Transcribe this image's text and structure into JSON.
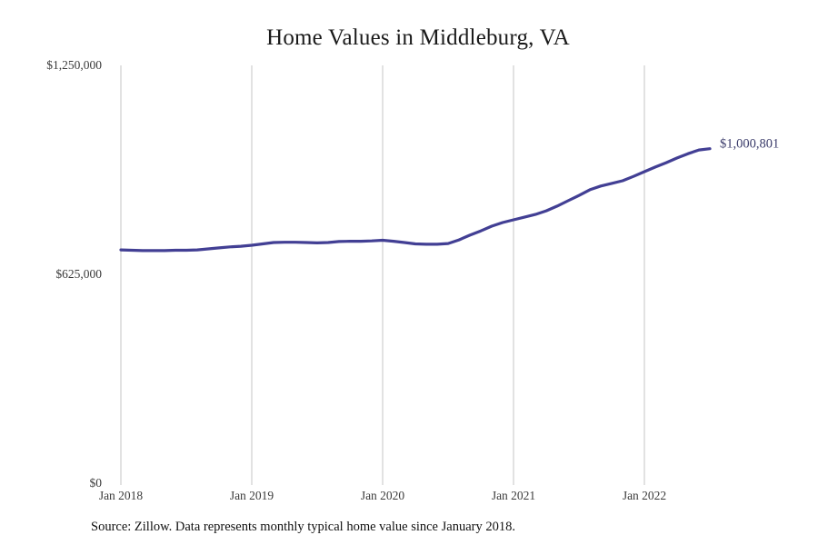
{
  "chart_data": {
    "type": "line",
    "title": "Home Values in Middleburg, VA",
    "series_name": "Monthly typical home value",
    "x_tick_labels": [
      "Jan 2018",
      "Jan 2019",
      "Jan 2020",
      "Jan 2021",
      "Jan 2022"
    ],
    "y_tick_labels": [
      "$0",
      "$625,000",
      "$1,250,000"
    ],
    "y_tick_values": [
      0,
      625000,
      1250000
    ],
    "ylim": [
      0,
      1250000
    ],
    "grid": "vertical-only",
    "legend": "none",
    "line_color": "#423f94",
    "gridline_color": "#c6c6c6",
    "end_label": "$1,000,801",
    "final_value": 1000801,
    "start_month": "Jan 2018",
    "end_month": "Jul 2022",
    "x_months": [
      "2018-01",
      "2018-02",
      "2018-03",
      "2018-04",
      "2018-05",
      "2018-06",
      "2018-07",
      "2018-08",
      "2018-09",
      "2018-10",
      "2018-11",
      "2018-12",
      "2019-01",
      "2019-02",
      "2019-03",
      "2019-04",
      "2019-05",
      "2019-06",
      "2019-07",
      "2019-08",
      "2019-09",
      "2019-10",
      "2019-11",
      "2019-12",
      "2020-01",
      "2020-02",
      "2020-03",
      "2020-04",
      "2020-05",
      "2020-06",
      "2020-07",
      "2020-08",
      "2020-09",
      "2020-10",
      "2020-11",
      "2020-12",
      "2021-01",
      "2021-02",
      "2021-03",
      "2021-04",
      "2021-05",
      "2021-06",
      "2021-07",
      "2021-08",
      "2021-09",
      "2021-10",
      "2021-11",
      "2021-12",
      "2022-01",
      "2022-02",
      "2022-03",
      "2022-04",
      "2022-05",
      "2022-06",
      "2022-07"
    ],
    "values": [
      698000,
      697000,
      696000,
      696000,
      696000,
      697000,
      697000,
      698000,
      701000,
      704000,
      707000,
      709000,
      712000,
      716000,
      720000,
      721000,
      721000,
      720000,
      719000,
      720000,
      723000,
      724000,
      724000,
      725000,
      727000,
      724000,
      720000,
      716000,
      715000,
      715000,
      717000,
      728000,
      742000,
      755000,
      769000,
      780000,
      788000,
      796000,
      804000,
      815000,
      829000,
      845000,
      861000,
      878000,
      889000,
      897000,
      905000,
      918000,
      932000,
      946000,
      959000,
      973000,
      986000,
      997000,
      1000801
    ],
    "source_note": "Source: Zillow. Data represents monthly typical home value since January 2018."
  }
}
